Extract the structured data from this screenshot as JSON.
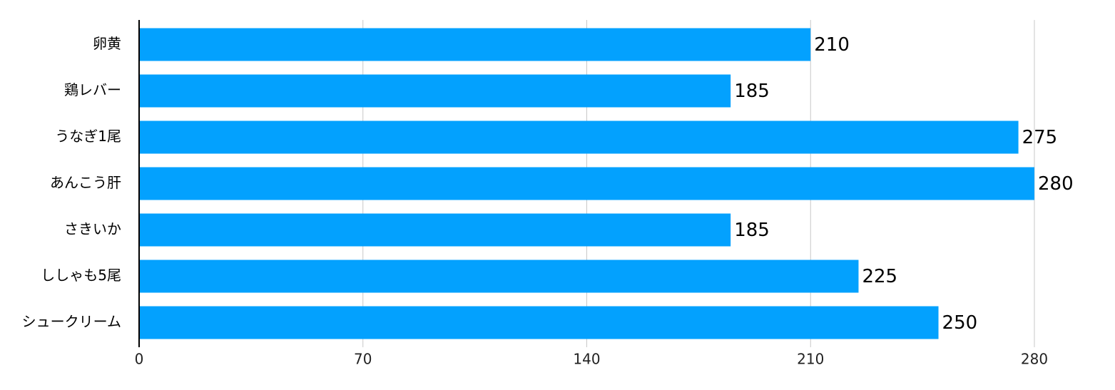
{
  "chart_data": {
    "type": "barh",
    "categories": [
      "卵黄",
      "鶏レバー",
      "うなぎ1尾",
      "あんこう肝",
      "さきいか",
      "ししゃも5尾",
      "シュークリーム"
    ],
    "values": [
      210,
      185,
      275,
      280,
      185,
      225,
      250
    ],
    "color": "#03a1fe",
    "xlim": [
      0,
      280
    ],
    "xticks": [
      0,
      70,
      140,
      210,
      280
    ],
    "grid": true
  }
}
